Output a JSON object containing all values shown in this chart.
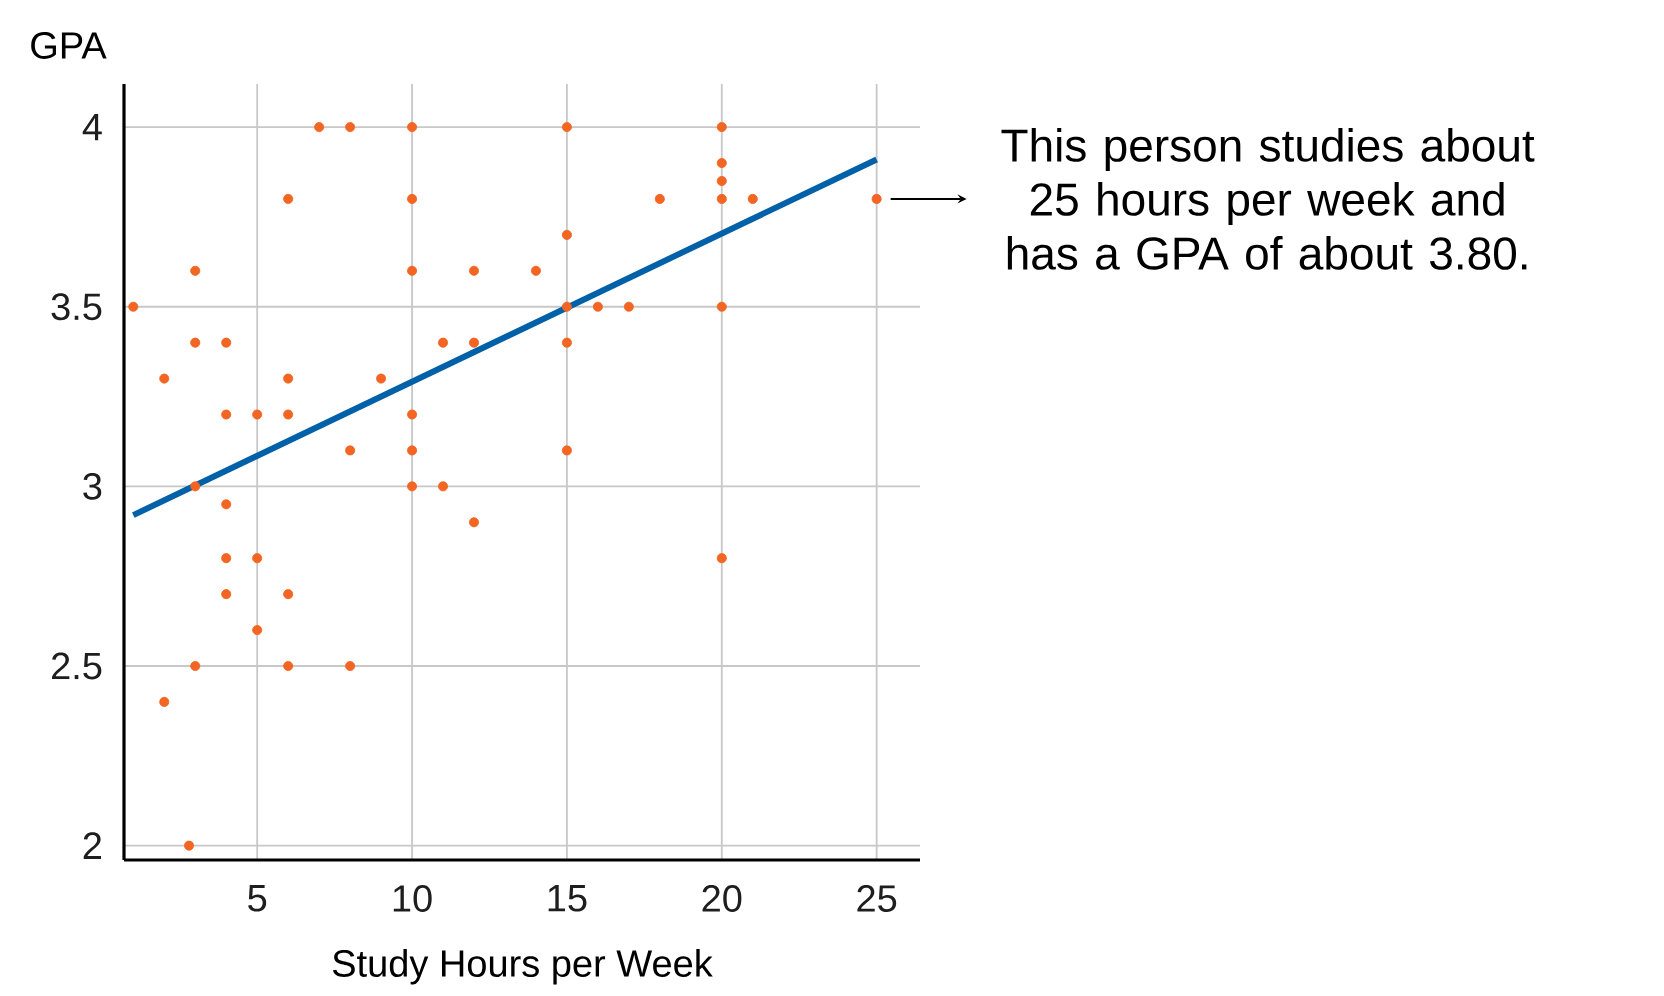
{
  "chart_data": {
    "type": "scatter",
    "xlabel": "Study Hours per Week",
    "ylabel": "GPA",
    "xlim": [
      0.7,
      26.4
    ],
    "ylim": [
      1.96,
      4.12
    ],
    "xticks": [
      5,
      10,
      15,
      20,
      25
    ],
    "yticks": [
      2,
      2.5,
      3,
      3.5,
      4
    ],
    "grid": true,
    "marker": "circle",
    "series": [
      {
        "color": "#f26522",
        "x": [
          1,
          2,
          2,
          3,
          3,
          3,
          3,
          2.8,
          4,
          4,
          4,
          4,
          4,
          5,
          5,
          5,
          6,
          6,
          6,
          6,
          6,
          7,
          8,
          8,
          8,
          9,
          10,
          10,
          10,
          10,
          10,
          10,
          11,
          11,
          12,
          12,
          12,
          14,
          15,
          15,
          15,
          15,
          15,
          16,
          17,
          18,
          20,
          20,
          20,
          20,
          20,
          20,
          21,
          25
        ],
        "values": [
          3.5,
          3.3,
          2.4,
          3.6,
          3.4,
          3.0,
          2.5,
          2.0,
          3.4,
          3.2,
          2.95,
          2.8,
          2.7,
          3.2,
          2.8,
          2.6,
          3.8,
          3.3,
          3.2,
          2.7,
          2.5,
          4.0,
          4.0,
          3.1,
          2.5,
          3.3,
          4.0,
          3.8,
          3.6,
          3.2,
          3.1,
          3.0,
          3.4,
          3.0,
          3.6,
          3.4,
          2.9,
          3.6,
          4.0,
          3.7,
          3.5,
          3.4,
          3.1,
          3.5,
          3.5,
          3.8,
          4.0,
          3.9,
          3.85,
          3.8,
          3.5,
          2.8,
          3.8,
          3.8
        ]
      },
      {
        "type": "line",
        "marker": "none",
        "color": "#0060a8",
        "x": [
          1,
          25
        ],
        "values": [
          2.92,
          3.91
        ]
      }
    ],
    "annotations": [
      {
        "text": "This person studies about 25 hours per week and has a GPA of about 3.80.",
        "x": 25,
        "y": 3.8
      }
    ]
  }
}
